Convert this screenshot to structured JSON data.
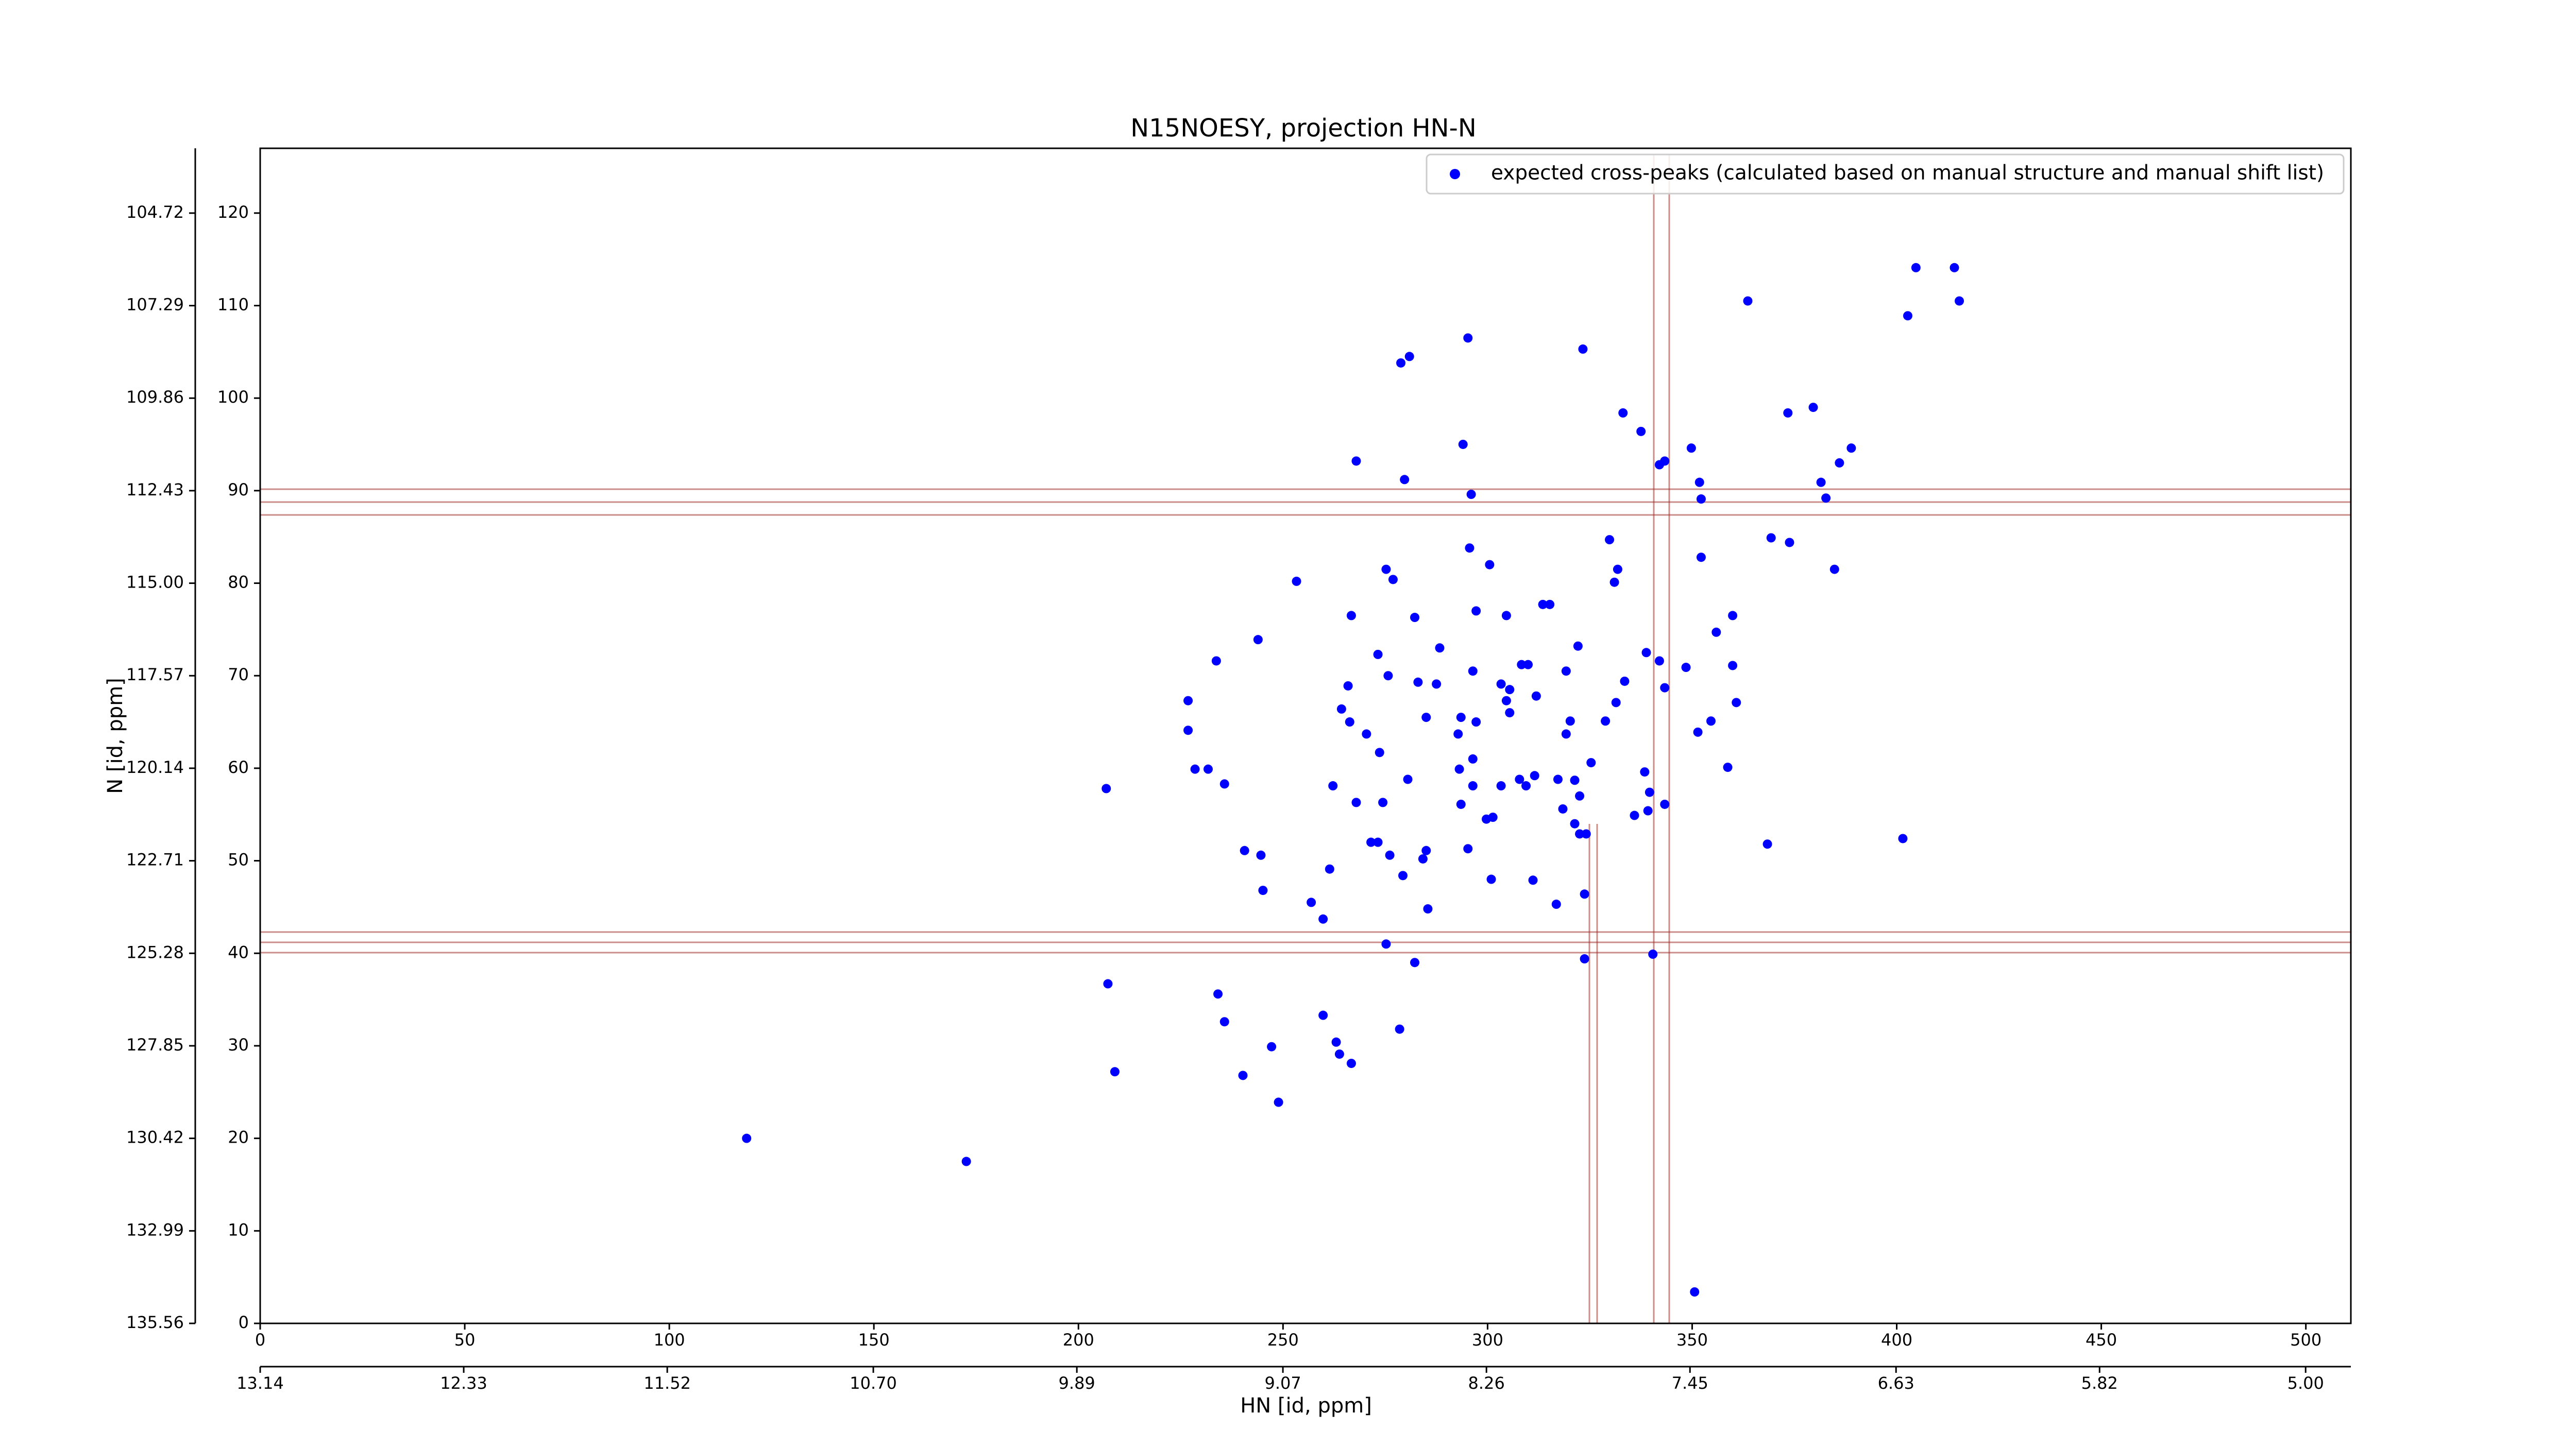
{
  "chart_data": {
    "type": "scatter",
    "title": "N15NOESY, projection HN-N",
    "xlabel": "HN [id, ppm]",
    "ylabel": "N [id, ppm]",
    "xlim": [
      0,
      511
    ],
    "ylim": [
      0,
      127
    ],
    "xticks": [
      0,
      50,
      100,
      150,
      200,
      250,
      300,
      350,
      400,
      450,
      500
    ],
    "yticks": [
      0,
      10,
      20,
      30,
      40,
      50,
      60,
      70,
      80,
      90,
      100,
      110,
      120
    ],
    "x2lim": [
      13.14,
      4.82
    ],
    "x2ticks": [
      13.14,
      12.33,
      11.52,
      {
        "value": 10.7,
        "label": "10.70"
      },
      9.89,
      9.07,
      8.26,
      7.45,
      6.63,
      5.82,
      {
        "value": 5,
        "label": "5.00"
      }
    ],
    "y2lim": [
      135.56,
      102.92
    ],
    "y2ticks": [
      135.56,
      132.99,
      130.42,
      127.85,
      125.28,
      122.71,
      120.14,
      117.57,
      {
        "value": 115,
        "label": "115.00"
      },
      112.43,
      109.86,
      107.29,
      104.72
    ],
    "legend": "upper right",
    "series": [
      {
        "name": "expected cross-peaks (calculated based on manual structure and manual shift list)",
        "color": "#0000ff",
        "x": [
          404.7,
          414.1,
          402.7,
          415.3,
          363.6,
          295.2,
          323.3,
          280.9,
          278.8,
          333.1,
          373.4,
          379.6,
          337.5,
          294.0,
          349.8,
          388.9,
          343.3,
          342.0,
          386.0,
          267.9,
          351.8,
          279.7,
          381.5,
          296.0,
          352.2,
          382.7,
          329.8,
          369.3,
          373.8,
          295.6,
          352.2,
          300.5,
          331.8,
          275.2,
          276.9,
          384.8,
          253.3,
          331.0,
          313.5,
          315.2,
          297.2,
          304.6,
          266.7,
          282.2,
          359.9,
          355.9,
          243.9,
          273.2,
          322.1,
          288.3,
          338.8,
          233.7,
          342.0,
          359.9,
          308.3,
          309.9,
          296.4,
          348.5,
          319.2,
          275.7,
          283.0,
          287.5,
          303.3,
          333.5,
          265.9,
          305.4,
          343.3,
          360.8,
          311.9,
          304.6,
          331.4,
          226.8,
          264.3,
          285.0,
          293.5,
          305.4,
          354.6,
          266.3,
          320.2,
          328.8,
          297.2,
          226.8,
          270.4,
          319.2,
          351.4,
          292.8,
          273.6,
          325.3,
          296.4,
          231.7,
          228.5,
          293.1,
          338.4,
          358.7,
          280.5,
          311.5,
          307.8,
          303.3,
          309.4,
          317.2,
          321.3,
          262.2,
          296.4,
          235.7,
          206.8,
          322.5,
          339.6,
          267.9,
          274.4,
          293.5,
          318.4,
          343.3,
          339.2,
          335.9,
          299.7,
          301.3,
          321.3,
          324.1,
          322.5,
          271.5,
          273.2,
          401.5,
          285.0,
          295.2,
          368.4,
          276.1,
          284.2,
          240.6,
          244.6,
          261.4,
          279.3,
          300.9,
          311.1,
          245.1,
          323.7,
          256.9,
          316.8,
          285.4,
          259.8,
          275.2,
          340.4,
          323.7,
          282.2,
          207.2,
          234.1,
          259.8,
          235.7,
          278.5,
          263.0,
          247.2,
          263.8,
          266.7,
          208.9,
          240.2,
          248.9,
          118.9,
          172.6,
          350.6
        ],
        "y": [
          114.1,
          114.1,
          108.9,
          110.5,
          110.5,
          106.5,
          105.3,
          104.5,
          103.8,
          98.4,
          98.4,
          99.0,
          96.4,
          95.0,
          94.6,
          94.6,
          93.2,
          92.8,
          93.0,
          93.2,
          90.9,
          91.2,
          90.9,
          89.6,
          89.1,
          89.2,
          84.7,
          84.9,
          84.4,
          83.8,
          82.8,
          82.0,
          81.5,
          81.5,
          80.4,
          81.5,
          80.2,
          80.1,
          77.7,
          77.7,
          77.0,
          76.5,
          76.5,
          76.3,
          76.5,
          74.7,
          73.9,
          72.3,
          73.2,
          73.0,
          72.5,
          71.6,
          71.6,
          71.1,
          71.2,
          71.2,
          70.5,
          70.9,
          70.5,
          70.0,
          69.3,
          69.1,
          69.1,
          69.4,
          68.9,
          68.5,
          68.7,
          67.1,
          67.8,
          67.3,
          67.1,
          67.3,
          66.4,
          65.5,
          65.5,
          66.0,
          65.1,
          65.0,
          65.1,
          65.1,
          65.0,
          64.1,
          63.7,
          63.7,
          63.9,
          63.7,
          61.7,
          60.6,
          61.0,
          59.9,
          59.9,
          59.9,
          59.6,
          60.1,
          58.8,
          59.2,
          58.8,
          58.1,
          58.1,
          58.8,
          58.7,
          58.1,
          58.1,
          58.3,
          57.8,
          57.0,
          57.4,
          56.3,
          56.3,
          56.1,
          55.6,
          56.1,
          55.4,
          54.9,
          54.5,
          54.7,
          54.0,
          52.9,
          52.9,
          52.0,
          52.0,
          52.4,
          51.1,
          51.3,
          51.8,
          50.6,
          50.2,
          51.1,
          50.6,
          49.1,
          48.4,
          48.0,
          47.9,
          46.8,
          46.4,
          45.5,
          45.3,
          44.8,
          43.7,
          41.0,
          39.9,
          39.4,
          39.0,
          36.7,
          35.6,
          33.3,
          32.6,
          31.8,
          30.4,
          29.9,
          29.1,
          28.1,
          27.2,
          26.8,
          23.9,
          20.0,
          17.5,
          3.4
        ]
      }
    ]
  }
}
